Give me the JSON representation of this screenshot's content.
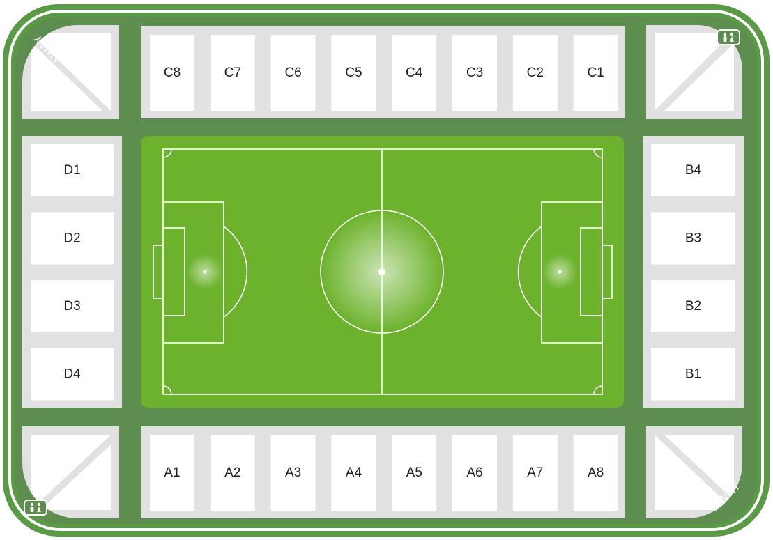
{
  "colors": {
    "outer_green": "#5a9a47",
    "inner_green": "#5e8e4f",
    "pitch_green": "#6cb22c",
    "stand_gray": "#e1e1e1",
    "seat_white": "#ffffff",
    "line_white": "#ffffff",
    "label_text": "#222222"
  },
  "sections": {
    "north": [
      "C8",
      "C7",
      "C6",
      "C5",
      "C4",
      "C3",
      "C2",
      "C1"
    ],
    "south": [
      "A1",
      "A2",
      "A3",
      "A4",
      "A5",
      "A6",
      "A7",
      "A8"
    ],
    "west": [
      "D1",
      "D2",
      "D3",
      "D4"
    ],
    "east": [
      "B4",
      "B3",
      "B2",
      "B1"
    ]
  },
  "corners": {
    "top_left": {
      "label": "AWAY"
    },
    "bottom_right": {
      "label": "AWAY"
    },
    "top_right": {
      "icon": "restroom-icon"
    },
    "bottom_left": {
      "icon": "restroom-icon"
    }
  }
}
